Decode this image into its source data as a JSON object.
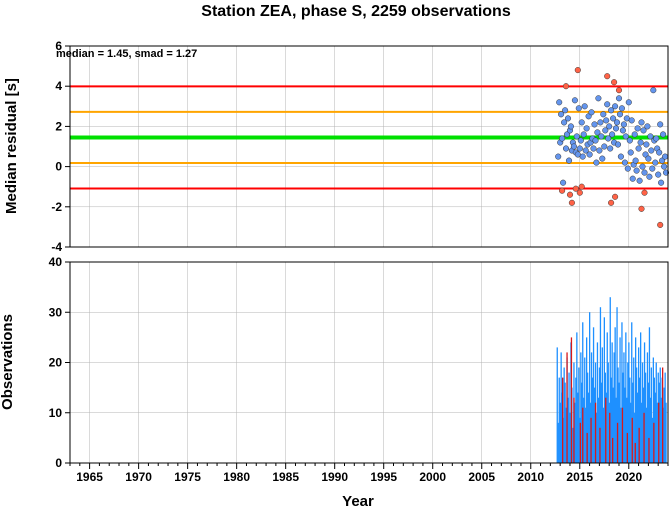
{
  "chart_data": [
    {
      "type": "scatter",
      "title": "Station ZEA, phase S, 2259 observations",
      "ylabel": "Median residual [s]",
      "xlim": [
        1963,
        2024
      ],
      "ylim": [
        -4,
        6
      ],
      "yticks": [
        -4,
        -2,
        0,
        2,
        4,
        6
      ],
      "grid": true,
      "annotation": "median = 1.45, smad = 1.27",
      "reference_lines": [
        {
          "y": 1.45,
          "color": "#00e000",
          "meaning": "median"
        },
        {
          "y": 2.72,
          "color": "#ffa500",
          "meaning": "median + smad"
        },
        {
          "y": 0.18,
          "color": "#ffa500",
          "meaning": "median - smad"
        },
        {
          "y": 3.99,
          "color": "#ff0000",
          "meaning": "median + 2 smad"
        },
        {
          "y": -1.09,
          "color": "#ff0000",
          "meaning": "median - 2 smad"
        }
      ],
      "series": [
        {
          "color": "#6495ed",
          "x": [
            2012.8,
            2012.9,
            2013.0,
            2013.1,
            2013.2,
            2013.3,
            2013.4,
            2013.5,
            2013.6,
            2013.7,
            2013.8,
            2013.9,
            2014.0,
            2014.1,
            2014.2,
            2014.3,
            2014.4,
            2014.5,
            2014.6,
            2014.7,
            2014.8,
            2014.9,
            2015.0,
            2015.1,
            2015.2,
            2015.3,
            2015.4,
            2015.5,
            2015.6,
            2015.7,
            2015.8,
            2015.9,
            2016.0,
            2016.1,
            2016.2,
            2016.3,
            2016.4,
            2016.5,
            2016.6,
            2016.7,
            2016.8,
            2016.9,
            2017.0,
            2017.1,
            2017.2,
            2017.3,
            2017.4,
            2017.5,
            2017.6,
            2017.7,
            2017.8,
            2017.9,
            2018.0,
            2018.1,
            2018.2,
            2018.3,
            2018.4,
            2018.5,
            2018.6,
            2018.7,
            2018.8,
            2018.9,
            2019.0,
            2019.1,
            2019.2,
            2019.3,
            2019.4,
            2019.5,
            2019.6,
            2019.7,
            2019.8,
            2019.9,
            2020.0,
            2020.1,
            2020.2,
            2020.3,
            2020.4,
            2020.5,
            2020.6,
            2020.7,
            2020.8,
            2020.9,
            2021.0,
            2021.1,
            2021.2,
            2021.3,
            2021.4,
            2021.5,
            2021.6,
            2021.7,
            2021.8,
            2021.9,
            2022.0,
            2022.1,
            2022.2,
            2022.3,
            2022.4,
            2022.5,
            2022.6,
            2022.7,
            2022.8,
            2022.9,
            2023.0,
            2023.1,
            2023.2,
            2023.3,
            2023.4,
            2023.5,
            2023.6,
            2023.7,
            2023.8
          ],
          "y": [
            0.5,
            3.2,
            1.2,
            2.6,
            1.4,
            -0.8,
            2.2,
            2.8,
            0.9,
            1.6,
            2.4,
            0.3,
            1.8,
            2.0,
            0.8,
            1.2,
            1.0,
            3.3,
            0.7,
            1.5,
            0.6,
            2.9,
            0.9,
            1.3,
            2.2,
            0.5,
            1.6,
            3.0,
            0.8,
            1.9,
            1.1,
            2.5,
            0.6,
            1.2,
            2.7,
            1.4,
            0.9,
            2.1,
            1.3,
            0.2,
            1.7,
            3.4,
            0.8,
            2.2,
            1.5,
            0.4,
            2.6,
            1.0,
            1.8,
            2.3,
            3.1,
            1.4,
            2.0,
            0.9,
            2.8,
            1.6,
            2.4,
            1.2,
            3.0,
            1.9,
            2.2,
            1.1,
            3.4,
            2.6,
            0.5,
            2.9,
            1.8,
            2.1,
            0.2,
            1.5,
            2.4,
            -0.1,
            3.2,
            1.3,
            0.7,
            2.3,
            -0.6,
            0.1,
            1.6,
            0.3,
            -0.2,
            1.9,
            0.9,
            -0.7,
            1.2,
            2.2,
            0.0,
            1.8,
            -0.3,
            0.6,
            1.1,
            2.0,
            0.4,
            -0.5,
            1.5,
            0.8,
            -0.1,
            3.8,
            1.3,
            0.2,
            1.4,
            0.9,
            -0.4,
            0.7,
            2.1,
            -0.8,
            0.3,
            1.6,
            0.0,
            0.5,
            -0.3
          ]
        },
        {
          "color": "#ff6347",
          "x": [
            2013.2,
            2013.6,
            2014.0,
            2014.2,
            2014.6,
            2014.8,
            2015.0,
            2015.2,
            2017.8,
            2018.2,
            2018.5,
            2018.6,
            2019.0,
            2021.3,
            2021.6,
            2023.2
          ],
          "y": [
            -1.2,
            4.0,
            -1.4,
            -1.8,
            -1.1,
            4.8,
            -1.3,
            -1.0,
            4.5,
            -1.8,
            4.2,
            -1.5,
            3.8,
            -2.1,
            -1.3,
            -2.9
          ]
        }
      ]
    },
    {
      "type": "bar",
      "xlabel": "Year",
      "ylabel": "Observations",
      "xlim": [
        1963,
        2024
      ],
      "ylim": [
        0,
        40
      ],
      "xticks": [
        1965,
        1970,
        1975,
        1980,
        1985,
        1990,
        1995,
        2000,
        2005,
        2010,
        2015,
        2020
      ],
      "yticks": [
        0,
        10,
        20,
        30,
        40
      ],
      "grid": true,
      "series": [
        {
          "color": "#1e90ff",
          "name": "",
          "x": [
            2012.7,
            2012.8,
            2012.9,
            2013.0,
            2013.1,
            2013.2,
            2013.3,
            2013.4,
            2013.5,
            2013.6,
            2013.7,
            2013.8,
            2013.9,
            2014.0,
            2014.1,
            2014.2,
            2014.3,
            2014.4,
            2014.5,
            2014.6,
            2014.7,
            2014.8,
            2014.9,
            2015.0,
            2015.1,
            2015.2,
            2015.3,
            2015.4,
            2015.5,
            2015.6,
            2015.7,
            2015.8,
            2015.9,
            2016.0,
            2016.1,
            2016.2,
            2016.3,
            2016.4,
            2016.5,
            2016.6,
            2016.7,
            2016.8,
            2016.9,
            2017.0,
            2017.1,
            2017.2,
            2017.3,
            2017.4,
            2017.5,
            2017.6,
            2017.7,
            2017.8,
            2017.9,
            2018.0,
            2018.1,
            2018.2,
            2018.3,
            2018.4,
            2018.5,
            2018.6,
            2018.7,
            2018.8,
            2018.9,
            2019.0,
            2019.1,
            2019.2,
            2019.3,
            2019.4,
            2019.5,
            2019.6,
            2019.7,
            2019.8,
            2019.9,
            2020.0,
            2020.1,
            2020.2,
            2020.3,
            2020.4,
            2020.5,
            2020.6,
            2020.7,
            2020.8,
            2020.9,
            2021.0,
            2021.1,
            2021.2,
            2021.3,
            2021.4,
            2021.5,
            2021.6,
            2021.7,
            2021.8,
            2021.9,
            2022.0,
            2022.1,
            2022.2,
            2022.3,
            2022.4,
            2022.5,
            2022.6,
            2022.7,
            2022.8,
            2022.9,
            2023.0,
            2023.1,
            2023.2,
            2023.3,
            2023.4,
            2023.5,
            2023.6,
            2023.7,
            2023.8
          ],
          "values": [
            23,
            8,
            17,
            12,
            22,
            14,
            9,
            19,
            16,
            11,
            21,
            13,
            18,
            10,
            24,
            15,
            7,
            20,
            12,
            17,
            26,
            14,
            19,
            9,
            22,
            16,
            28,
            13,
            21,
            11,
            25,
            18,
            14,
            30,
            12,
            22,
            17,
            27,
            15,
            20,
            10,
            24,
            13,
            19,
            31,
            16,
            23,
            11,
            29,
            18,
            14,
            26,
            20,
            12,
            33,
            17,
            24,
            15,
            22,
            27,
            13,
            31,
            19,
            16,
            25,
            11,
            28,
            18,
            22,
            15,
            26,
            13,
            20,
            24,
            17,
            12,
            28,
            16,
            21,
            10,
            25,
            19,
            14,
            23,
            17,
            26,
            12,
            20,
            15,
            24,
            18,
            11,
            22,
            16,
            27,
            13,
            19,
            9,
            21,
            17,
            14,
            20,
            12,
            18,
            16,
            19,
            13,
            17,
            11,
            15,
            18,
            12
          ]
        },
        {
          "color": "#d7191c",
          "name": "",
          "x": [
            2013.25,
            2013.7,
            2014.15,
            2014.4,
            2015.05,
            2015.3,
            2015.75,
            2016.15,
            2016.6,
            2017.05,
            2017.65,
            2018.05,
            2018.35,
            2018.85,
            2019.35,
            2019.85,
            2020.35,
            2020.65,
            2021.05,
            2021.55,
            2022.05,
            2022.55,
            2023.05,
            2023.45
          ],
          "values": [
            17,
            22,
            25,
            13,
            8,
            11,
            6,
            9,
            12,
            7,
            13,
            10,
            5,
            8,
            11,
            6,
            9,
            4,
            7,
            10,
            5,
            8,
            12,
            19
          ]
        }
      ]
    }
  ]
}
